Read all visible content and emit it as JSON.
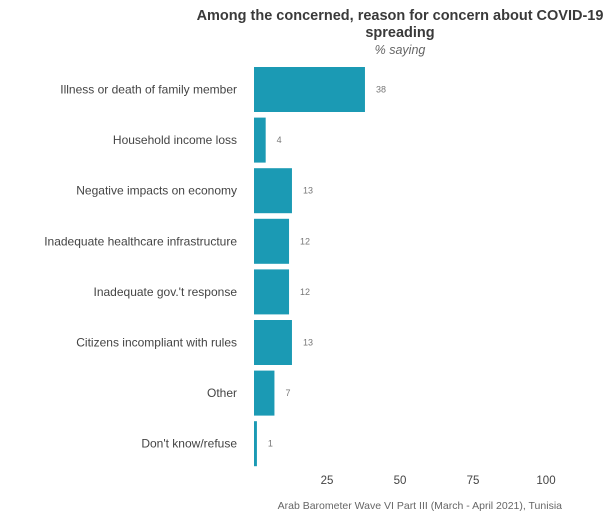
{
  "title": "Among the concerned, reason for concern about COVID-19 spreading",
  "subtitle": "% saying",
  "source": "Arab Barometer Wave VI Part III (March - April 2021), Tunisia",
  "colors": {
    "bar": "#1b9ab4",
    "label": "#444444",
    "value": "#777777"
  },
  "chart_data": {
    "type": "bar",
    "orientation": "horizontal",
    "categories": [
      "Illness or death of family member",
      "Household income loss",
      "Negative impacts on economy",
      "Inadequate healthcare infrastructure",
      "Inadequate gov.'t response",
      "Citizens incompliant with rules",
      "Other",
      "Don't know/refuse"
    ],
    "values": [
      38,
      4,
      13,
      12,
      12,
      13,
      7,
      1
    ],
    "xlim": [
      0,
      100
    ],
    "xticks": [
      25,
      50,
      75,
      100
    ],
    "grid": false,
    "legend": "none"
  }
}
